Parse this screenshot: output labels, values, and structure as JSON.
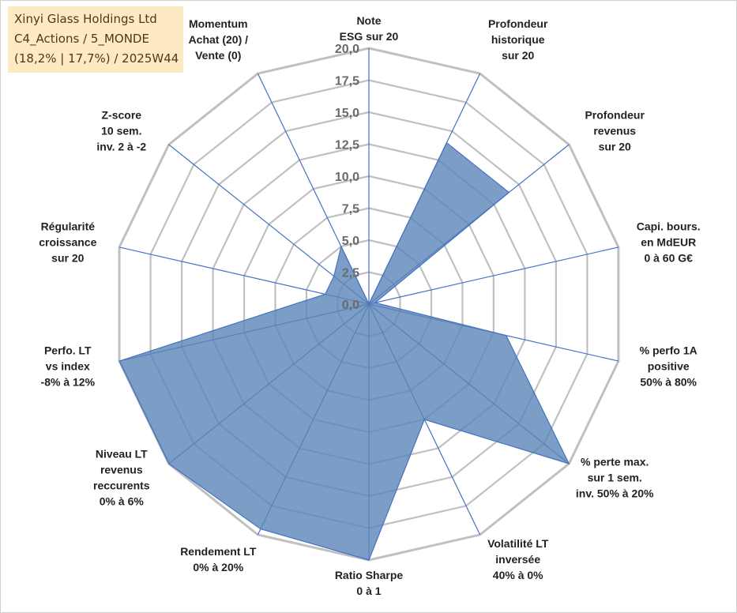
{
  "info": {
    "line1": "Xinyi Glass Holdings Ltd",
    "line2": "C4_Actions / 5_MONDE",
    "line3": "(18,2% | 17,7%) / 2025W44"
  },
  "colors": {
    "fill": "#5b84b6",
    "stroke": "#4472c4",
    "grid": "#c0c0c0",
    "axis": "#4472c4"
  },
  "chart_data": {
    "type": "radar",
    "title": "",
    "range": [
      0,
      20
    ],
    "ticks": [
      "0,0",
      "2,5",
      "5,0",
      "7,5",
      "10,0",
      "12,5",
      "15,0",
      "17,5",
      "20,0"
    ],
    "categories": [
      [
        "Note",
        "ESG sur 20"
      ],
      [
        "Profondeur",
        "historique",
        "sur 20"
      ],
      [
        "Profondeur",
        "revenus",
        "sur 20"
      ],
      [
        "Capi. bours.",
        "en MdEUR",
        "0 à 60 G€"
      ],
      [
        "% perfo 1A",
        "positive",
        "50% à 80%"
      ],
      [
        "% perte max.",
        "sur 1 sem.",
        "inv. 50% à 20%"
      ],
      [
        "Volatilité LT",
        "inversée",
        "40% à 0%"
      ],
      [
        "Ratio Sharpe",
        "0 à 1"
      ],
      [
        "Rendement LT",
        "0% à 20%"
      ],
      [
        "Niveau LT",
        "revenus",
        "reccurents",
        "0% à 6%"
      ],
      [
        "Perfo. LT",
        "vs index",
        "-8% à 12%"
      ],
      [
        "Régularité",
        "croissance",
        "sur 20"
      ],
      [
        "Z-score",
        "10 sem.",
        "inv. 2 à -2"
      ],
      [
        "Momentum",
        "Achat (20) /",
        "Vente (0)"
      ]
    ],
    "series": [
      {
        "name": "Xinyi Glass Holdings Ltd",
        "values": [
          0,
          14,
          14,
          0.5,
          11,
          20,
          10,
          20,
          19.5,
          20,
          20,
          3.5,
          3.5,
          5
        ]
      }
    ]
  }
}
